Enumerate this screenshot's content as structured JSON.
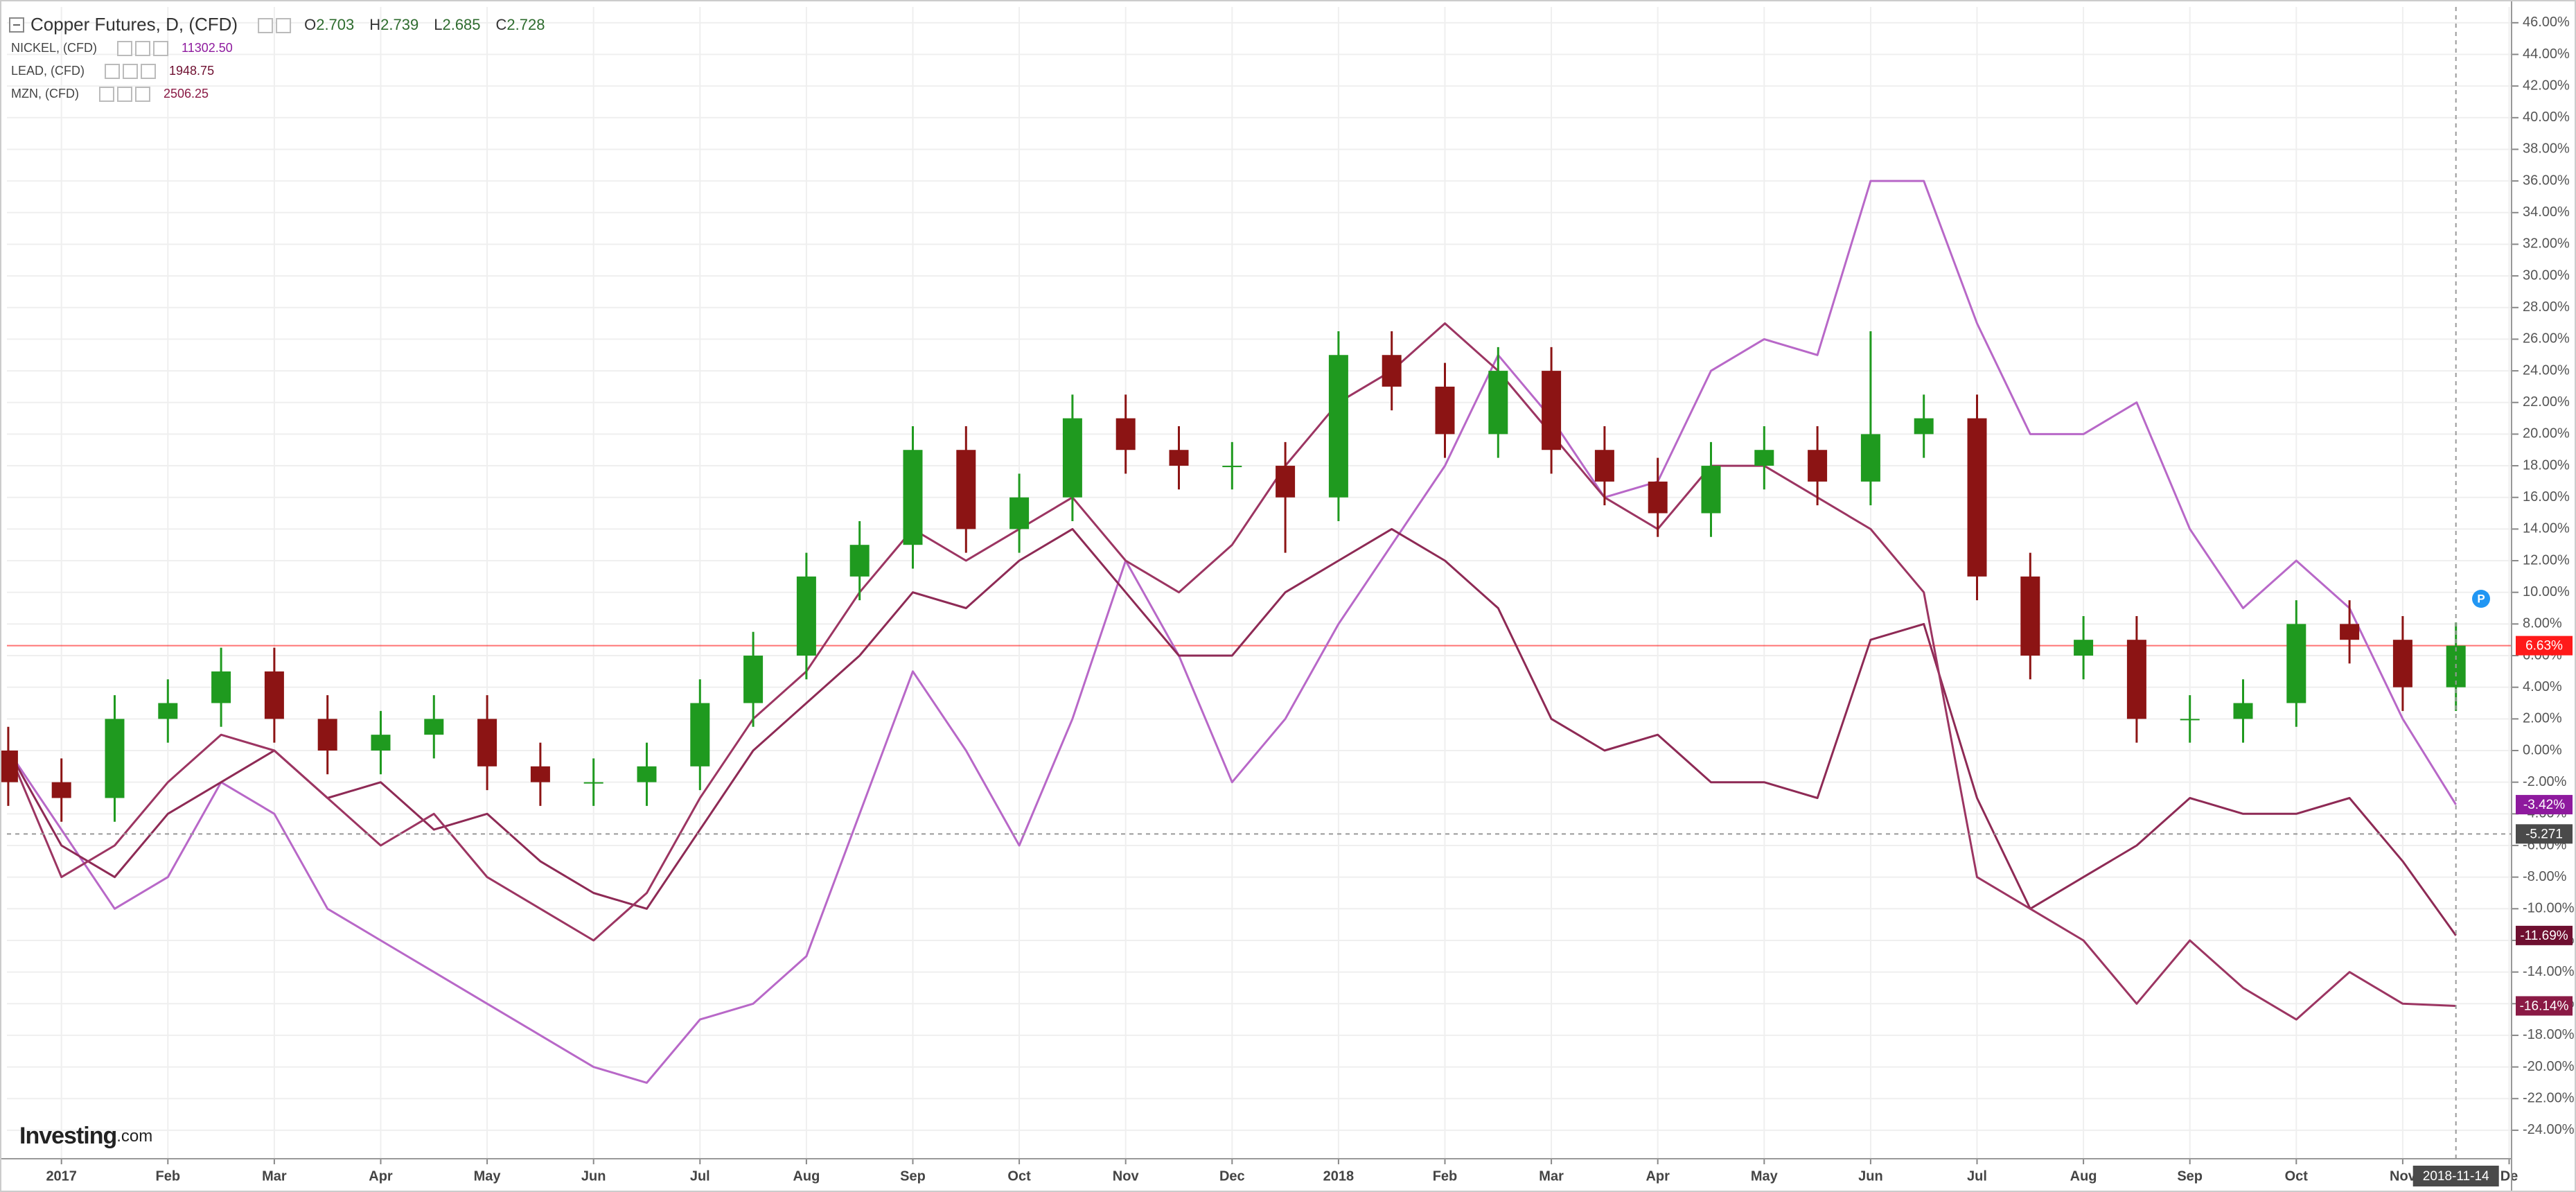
{
  "chart_data": {
    "type": "candlestick",
    "title": "Copper Futures, D, (CFD)",
    "ohlc_readout": [
      {
        "key": "O",
        "value": 2.703
      },
      {
        "key": "H",
        "value": 2.739
      },
      {
        "key": "L",
        "value": 2.685
      },
      {
        "key": "C",
        "value": 2.728
      }
    ],
    "categories": [
      null,
      "2017",
      null,
      "Feb",
      null,
      "Mar",
      null,
      "Apr",
      null,
      "May",
      null,
      "Jun",
      null,
      "Jul",
      null,
      "Aug",
      null,
      "Sep",
      null,
      "Oct",
      null,
      "Nov",
      null,
      "Dec",
      null,
      "2018",
      null,
      "Feb",
      null,
      "Mar",
      null,
      "Apr",
      null,
      "May",
      null,
      "Jun",
      null,
      "Jul",
      null,
      "Aug",
      null,
      "Sep",
      null,
      "Oct",
      null,
      "Nov",
      null,
      "De"
    ],
    "candles": {
      "up_color": "#1f9a1f",
      "down_color": "#8c1414",
      "last_color": "#ff1a1a",
      "open": [
        0,
        -2,
        -3,
        2,
        3,
        5,
        2,
        0,
        1,
        2,
        -1,
        -2,
        -2,
        -1,
        3,
        6,
        11,
        13,
        19,
        14,
        16,
        21,
        19,
        18,
        18,
        16,
        25,
        23,
        20,
        24,
        19,
        17,
        15,
        18,
        19,
        17,
        20,
        21,
        11,
        6,
        7,
        2,
        2,
        3,
        8,
        7,
        4,
        null
      ],
      "high": [
        1.5,
        -0.5,
        3.5,
        4.5,
        6.5,
        6.5,
        3.5,
        2.5,
        3.5,
        3.5,
        0.5,
        -0.5,
        0.5,
        4.5,
        7.5,
        12.5,
        14.5,
        20.5,
        20.5,
        17.5,
        22.5,
        22.5,
        20.5,
        19.5,
        19.5,
        26.5,
        26.5,
        24.5,
        25.5,
        25.5,
        20.5,
        18.5,
        19.5,
        20.5,
        20.5,
        26.5,
        22.5,
        22.5,
        12.5,
        8.5,
        8.5,
        3.5,
        4.5,
        9.5,
        9.5,
        8.5,
        8.1,
        null
      ],
      "low": [
        -3.5,
        -4.5,
        -4.5,
        0.5,
        1.5,
        0.5,
        -1.5,
        -1.5,
        -0.5,
        -2.5,
        -3.5,
        -3.5,
        -3.5,
        -2.5,
        1.5,
        4.5,
        9.5,
        11.5,
        12.5,
        12.5,
        14.5,
        17.5,
        16.5,
        16.5,
        12.5,
        14.5,
        21.5,
        18.5,
        18.5,
        17.5,
        15.5,
        13.5,
        13.5,
        16.5,
        15.5,
        15.5,
        18.5,
        9.5,
        4.5,
        4.5,
        0.5,
        0.5,
        0.5,
        1.5,
        5.5,
        2.5,
        2.5,
        null
      ],
      "close": [
        -2,
        -3,
        2,
        3,
        5,
        2,
        0,
        1,
        2,
        -1,
        -2,
        -2,
        -1,
        3,
        6,
        11,
        13,
        19,
        14,
        16,
        21,
        19,
        18,
        18,
        16,
        25,
        23,
        20,
        24,
        19,
        17,
        15,
        18,
        19,
        17,
        20,
        21,
        11,
        6,
        7,
        2,
        2,
        3,
        8,
        7,
        4,
        6.63,
        null
      ],
      "last_label": "6.63%"
    },
    "series": [
      {
        "name": "NICKEL, (CFD)",
        "type": "line",
        "price": {
          "value": 11302.5,
          "label": "11302.50"
        },
        "color": "#b868c8",
        "label_color": "#8e1a9e",
        "values": [
          0,
          -5,
          -10,
          -8,
          -2,
          -4,
          -10,
          -12,
          -14,
          -16,
          -18,
          -20,
          -21,
          -17,
          -16,
          -13,
          -4,
          5,
          0,
          -6,
          2,
          12,
          6,
          -2,
          2,
          8,
          13,
          18,
          25,
          21,
          16,
          17,
          24,
          26,
          25,
          36,
          36,
          27,
          20,
          20,
          22,
          14,
          9,
          12,
          9,
          2,
          -3.42,
          null
        ],
        "last_label": "-3.42%"
      },
      {
        "name": "LEAD, (CFD)",
        "type": "line",
        "price": 1948.75,
        "color": "#8e2a55",
        "label_color": "#6e0f30",
        "values": [
          0,
          -6,
          -8,
          -4,
          -2,
          0,
          -3,
          -2,
          -5,
          -4,
          -7,
          -9,
          -10,
          -5,
          0,
          3,
          6,
          10,
          9,
          12,
          14,
          10,
          6,
          6,
          10,
          12,
          14,
          12,
          9,
          2,
          0,
          1,
          -2,
          -2,
          -3,
          7,
          8,
          -3,
          -10,
          -8,
          -6,
          -3,
          -4,
          -4,
          -3,
          -7,
          -11.69,
          null
        ],
        "last_label": "-11.69%"
      },
      {
        "name": "MZN, (CFD)",
        "type": "line",
        "price": 2506.25,
        "color": "#9c3562",
        "label_color": "#8a1a45",
        "values": [
          0,
          -8,
          -6,
          -2,
          1,
          0,
          -3,
          -6,
          -4,
          -8,
          -10,
          -12,
          -9,
          -3,
          2,
          5,
          10,
          14,
          12,
          14,
          16,
          12,
          10,
          13,
          18,
          22,
          24,
          27,
          24,
          20,
          16,
          14,
          18,
          18,
          16,
          14,
          10,
          -8,
          -10,
          -12,
          -16,
          -12,
          -15,
          -17,
          -14,
          -16,
          -16.14,
          null
        ],
        "last_label": "-16.14%"
      }
    ],
    "ylim": [
      -25.8,
      47
    ],
    "yticks": [
      {
        "value": 46,
        "label": "46.00%"
      },
      {
        "value": 44,
        "label": "44.00%"
      },
      {
        "value": 42,
        "label": "42.00%"
      },
      {
        "value": 40,
        "label": "40.00%"
      },
      {
        "value": 38,
        "label": "38.00%"
      },
      {
        "value": 36,
        "label": "36.00%"
      },
      {
        "value": 34,
        "label": "34.00%"
      },
      {
        "value": 32,
        "label": "32.00%"
      },
      {
        "value": 30,
        "label": "30.00%"
      },
      {
        "value": 28,
        "label": "28.00%"
      },
      {
        "value": 26,
        "label": "26.00%"
      },
      {
        "value": 24,
        "label": "24.00%"
      },
      {
        "value": 22,
        "label": "22.00%"
      },
      {
        "value": 20,
        "label": "20.00%"
      },
      {
        "value": 18,
        "label": "18.00%"
      },
      {
        "value": 16,
        "label": "16.00%"
      },
      {
        "value": 14,
        "label": "14.00%"
      },
      {
        "value": 12,
        "label": "12.00%"
      },
      {
        "value": 10,
        "label": "10.00%"
      },
      {
        "value": 8,
        "label": "8.00%"
      },
      {
        "value": 6,
        "label": "6.00%"
      },
      {
        "value": 4,
        "label": "4.00%"
      },
      {
        "value": 2,
        "label": "2.00%"
      },
      {
        "value": 0,
        "label": "0.00%"
      },
      {
        "value": -2,
        "label": "-2.00%"
      },
      {
        "value": -4,
        "label": "-4.00%"
      },
      {
        "value": -6,
        "label": "-6.00%"
      },
      {
        "value": -8,
        "label": "-8.00%"
      },
      {
        "value": -10,
        "label": "-10.00%"
      },
      {
        "value": -12,
        "label": "-12.00%"
      },
      {
        "value": -14,
        "label": "-14.00%"
      },
      {
        "value": -16,
        "label": "-16.00%"
      },
      {
        "value": -18,
        "label": "-18.00%"
      },
      {
        "value": -20,
        "label": "-20.00%"
      },
      {
        "value": -22,
        "label": "-22.00%"
      },
      {
        "value": -24,
        "label": "-24.00%"
      }
    ],
    "grid": true,
    "crosshair": {
      "x_label": "2018-11-14",
      "y": -5.271
    },
    "marker_icon": "P",
    "watermark": [
      "Investing",
      ".com"
    ]
  }
}
